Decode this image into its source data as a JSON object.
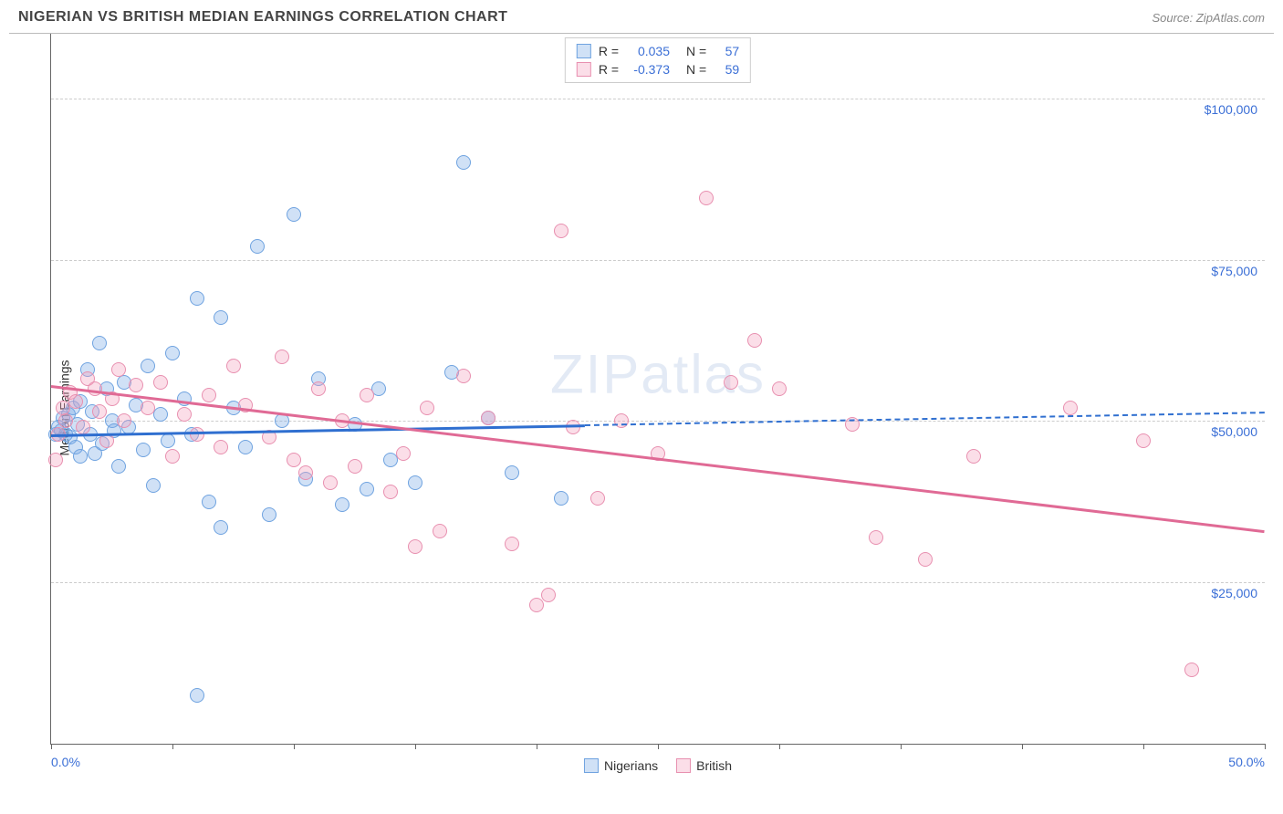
{
  "title": "NIGERIAN VS BRITISH MEDIAN EARNINGS CORRELATION CHART",
  "source": "Source: ZipAtlas.com",
  "watermark": "ZIPatlas",
  "yaxis_label": "Median Earnings",
  "chart": {
    "type": "scatter",
    "xlim": [
      0,
      50
    ],
    "ylim": [
      0,
      110000
    ],
    "x_tick_positions": [
      0,
      5,
      10,
      15,
      20,
      25,
      30,
      35,
      40,
      45,
      50
    ],
    "x_labels": {
      "min": "0.0%",
      "max": "50.0%"
    },
    "y_gridlines": [
      25000,
      50000,
      75000,
      100000
    ],
    "y_tick_labels": [
      "$25,000",
      "$50,000",
      "$75,000",
      "$100,000"
    ],
    "grid_color": "#cccccc",
    "axis_color": "#666666",
    "label_color": "#3b6fd6",
    "background": "#ffffff",
    "marker_radius": 8,
    "series": [
      {
        "name": "Nigerians",
        "fill": "rgba(120,170,230,0.35)",
        "stroke": "#6fa3e0",
        "R": "0.035",
        "N": "57",
        "trend": {
          "y_at_xmin": 48000,
          "y_at_xmax": 51500,
          "solid_until_x": 22,
          "color": "#2f6fd0"
        },
        "points": [
          [
            0.2,
            48000
          ],
          [
            0.3,
            49000
          ],
          [
            0.4,
            48500
          ],
          [
            0.5,
            50500
          ],
          [
            0.6,
            48000
          ],
          [
            0.7,
            51000
          ],
          [
            0.8,
            47500
          ],
          [
            0.9,
            52000
          ],
          [
            1.0,
            46000
          ],
          [
            1.1,
            49500
          ],
          [
            1.2,
            53000
          ],
          [
            1.2,
            44500
          ],
          [
            1.5,
            58000
          ],
          [
            1.6,
            48000
          ],
          [
            1.7,
            51500
          ],
          [
            1.8,
            45000
          ],
          [
            2.0,
            62000
          ],
          [
            2.1,
            46500
          ],
          [
            2.3,
            55000
          ],
          [
            2.5,
            50000
          ],
          [
            2.6,
            48500
          ],
          [
            2.8,
            43000
          ],
          [
            3.0,
            56000
          ],
          [
            3.2,
            49000
          ],
          [
            3.5,
            52500
          ],
          [
            3.8,
            45500
          ],
          [
            4.0,
            58500
          ],
          [
            4.2,
            40000
          ],
          [
            4.5,
            51000
          ],
          [
            4.8,
            47000
          ],
          [
            5.0,
            60500
          ],
          [
            5.5,
            53500
          ],
          [
            5.8,
            48000
          ],
          [
            6.0,
            69000
          ],
          [
            6.5,
            37500
          ],
          [
            7.0,
            33500
          ],
          [
            7.0,
            66000
          ],
          [
            7.5,
            52000
          ],
          [
            8.0,
            46000
          ],
          [
            8.5,
            77000
          ],
          [
            9.0,
            35500
          ],
          [
            9.5,
            50000
          ],
          [
            10.0,
            82000
          ],
          [
            10.5,
            41000
          ],
          [
            11.0,
            56500
          ],
          [
            12.0,
            37000
          ],
          [
            12.5,
            49500
          ],
          [
            13.0,
            39500
          ],
          [
            13.5,
            55000
          ],
          [
            14.0,
            44000
          ],
          [
            15.0,
            40500
          ],
          [
            16.5,
            57500
          ],
          [
            17.0,
            90000
          ],
          [
            18.0,
            50500
          ],
          [
            19.0,
            42000
          ],
          [
            21.0,
            38000
          ],
          [
            6.0,
            7500
          ]
        ]
      },
      {
        "name": "British",
        "fill": "rgba(244,160,190,0.35)",
        "stroke": "#e890b0",
        "R": "-0.373",
        "N": "59",
        "trend": {
          "y_at_xmin": 55500,
          "y_at_xmax": 33000,
          "solid_until_x": 50,
          "color": "#e06a95"
        },
        "points": [
          [
            0.2,
            44000
          ],
          [
            0.3,
            48000
          ],
          [
            0.5,
            52000
          ],
          [
            0.6,
            50000
          ],
          [
            0.8,
            54500
          ],
          [
            1.0,
            53000
          ],
          [
            1.3,
            49000
          ],
          [
            1.5,
            56500
          ],
          [
            1.8,
            55000
          ],
          [
            2.0,
            51500
          ],
          [
            2.3,
            47000
          ],
          [
            2.5,
            53500
          ],
          [
            2.8,
            58000
          ],
          [
            3.0,
            50000
          ],
          [
            3.5,
            55500
          ],
          [
            4.0,
            52000
          ],
          [
            4.5,
            56000
          ],
          [
            5.0,
            44500
          ],
          [
            5.5,
            51000
          ],
          [
            6.0,
            48000
          ],
          [
            6.5,
            54000
          ],
          [
            7.0,
            46000
          ],
          [
            7.5,
            58500
          ],
          [
            8.0,
            52500
          ],
          [
            9.0,
            47500
          ],
          [
            9.5,
            60000
          ],
          [
            10.0,
            44000
          ],
          [
            10.5,
            42000
          ],
          [
            11.0,
            55000
          ],
          [
            11.5,
            40500
          ],
          [
            12.0,
            50000
          ],
          [
            12.5,
            43000
          ],
          [
            13.0,
            54000
          ],
          [
            14.0,
            39000
          ],
          [
            14.5,
            45000
          ],
          [
            15.0,
            30500
          ],
          [
            15.5,
            52000
          ],
          [
            16.0,
            33000
          ],
          [
            17.0,
            57000
          ],
          [
            18.0,
            50500
          ],
          [
            19.0,
            31000
          ],
          [
            20.0,
            21500
          ],
          [
            20.5,
            23000
          ],
          [
            21.0,
            79500
          ],
          [
            21.5,
            49000
          ],
          [
            22.5,
            38000
          ],
          [
            23.5,
            50000
          ],
          [
            25.0,
            45000
          ],
          [
            27.0,
            84500
          ],
          [
            28.0,
            56000
          ],
          [
            29.0,
            62500
          ],
          [
            30.0,
            55000
          ],
          [
            33.0,
            49500
          ],
          [
            34.0,
            32000
          ],
          [
            36.0,
            28500
          ],
          [
            38.0,
            44500
          ],
          [
            42.0,
            52000
          ],
          [
            45.0,
            47000
          ],
          [
            47.0,
            11500
          ]
        ]
      }
    ]
  },
  "legend": {
    "series1": "Nigerians",
    "series2": "British"
  }
}
